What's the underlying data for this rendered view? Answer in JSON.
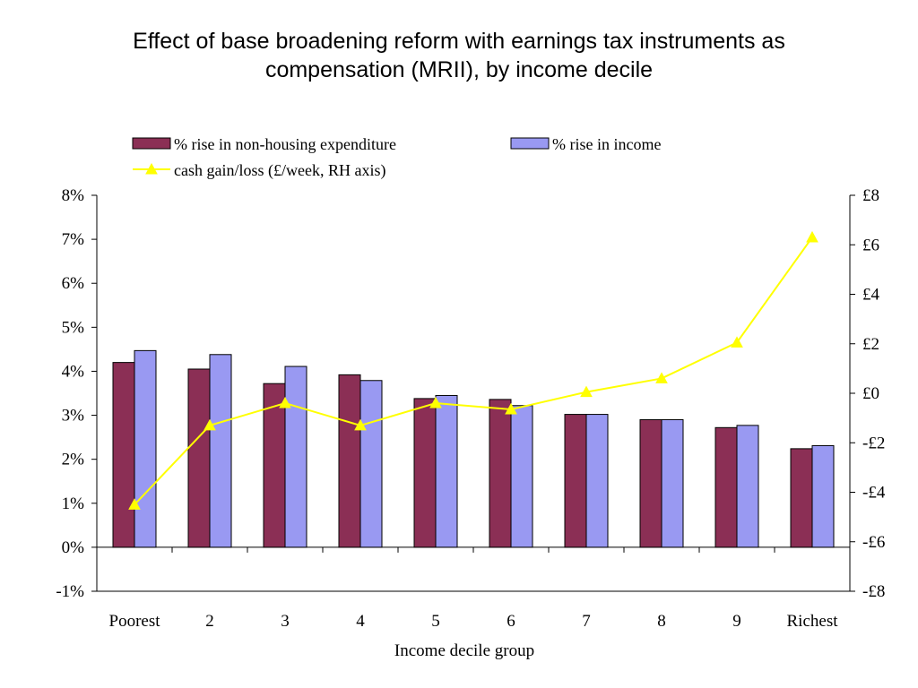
{
  "chart_data": {
    "type": "bar",
    "title_line1": "Effect of base broadening reform with earnings tax instruments as",
    "title_line2": "compensation (MRII), by income decile",
    "xlabel": "Income decile group",
    "categories": [
      "Poorest",
      "2",
      "3",
      "4",
      "5",
      "6",
      "7",
      "8",
      "9",
      "Richest"
    ],
    "series": [
      {
        "name": "% rise in non-housing expenditure",
        "type": "bar",
        "axis": "left",
        "color": "#8B2F55",
        "values": [
          4.2,
          4.05,
          3.72,
          3.92,
          3.38,
          3.36,
          3.02,
          2.9,
          2.72,
          2.24
        ]
      },
      {
        "name": "% rise in income",
        "type": "bar",
        "axis": "left",
        "color": "#9999F2",
        "values": [
          4.47,
          4.38,
          4.11,
          3.79,
          3.45,
          3.22,
          3.02,
          2.9,
          2.77,
          2.31
        ]
      },
      {
        "name": "cash gain/loss (£/week, RH axis)",
        "type": "line",
        "axis": "right",
        "color": "#FFFF00",
        "values": [
          -4.5,
          -1.3,
          -0.4,
          -1.3,
          -0.4,
          -0.65,
          0.05,
          0.6,
          2.05,
          6.3
        ]
      }
    ],
    "left_axis": {
      "ylim": [
        -1,
        8
      ],
      "ticks": [
        "8%",
        "7%",
        "6%",
        "5%",
        "4%",
        "3%",
        "2%",
        "1%",
        "0%",
        "-1%"
      ]
    },
    "right_axis": {
      "ylim": [
        -8,
        8
      ],
      "ticks": [
        "£8",
        "£6",
        "£4",
        "£2",
        "£0",
        "-£2",
        "-£4",
        "-£6",
        "-£8"
      ]
    },
    "legend_position": "top",
    "grid": false
  }
}
